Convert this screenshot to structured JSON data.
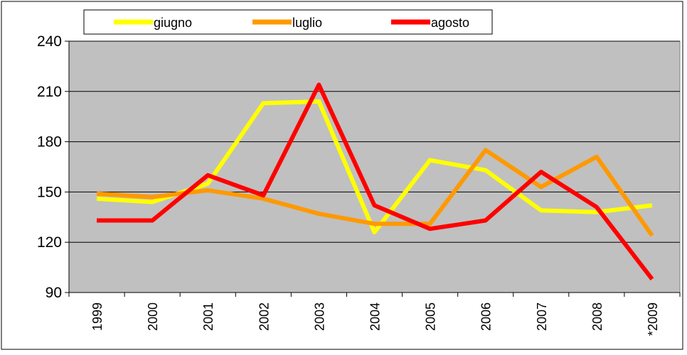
{
  "chart_data": {
    "type": "line",
    "categories": [
      "1999",
      "2000",
      "2001",
      "2002",
      "2003",
      "2004",
      "2005",
      "2006",
      "2007",
      "2008",
      "*2009"
    ],
    "series": [
      {
        "name": "giugno",
        "color": "#ffff00",
        "values": [
          146,
          144,
          155,
          203,
          204,
          126,
          169,
          163,
          139,
          138,
          142
        ]
      },
      {
        "name": "luglio",
        "color": "#ff9900",
        "values": [
          149,
          147,
          151,
          146,
          137,
          131,
          131,
          175,
          153,
          171,
          124
        ]
      },
      {
        "name": "agosto",
        "color": "#ff0000",
        "values": [
          133,
          133,
          160,
          148,
          214,
          142,
          128,
          133,
          162,
          141,
          98
        ]
      }
    ],
    "ylim": [
      90,
      240
    ],
    "yticks": [
      90,
      120,
      150,
      180,
      210,
      240
    ],
    "grid": true
  }
}
